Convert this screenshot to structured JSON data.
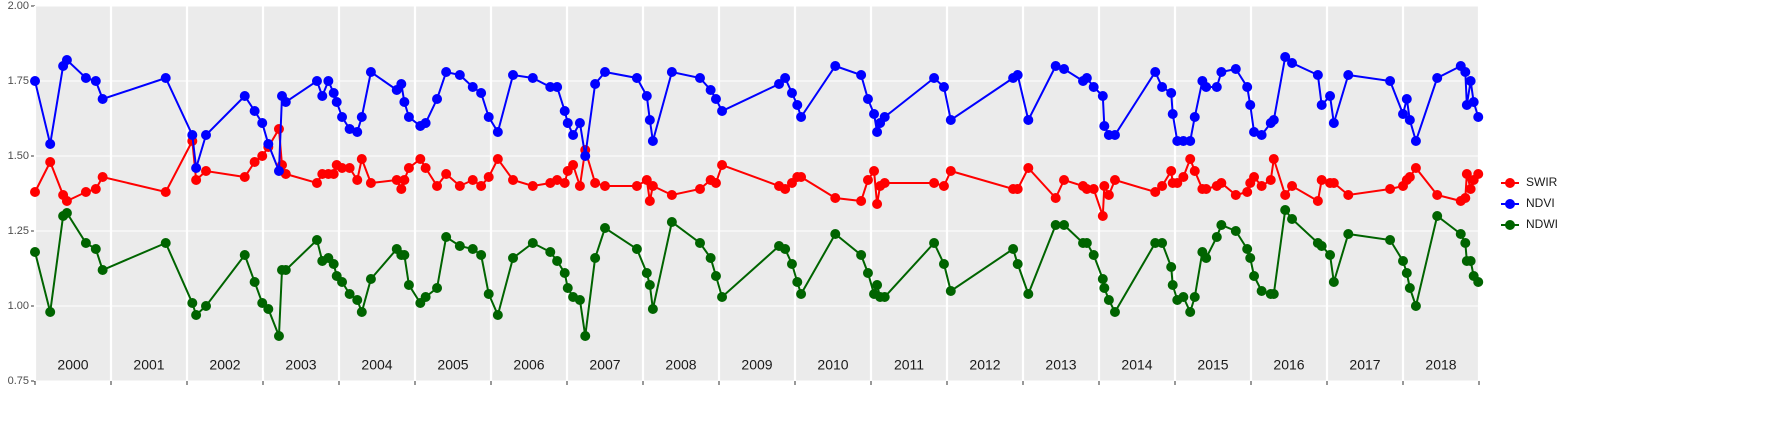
{
  "chart_data": {
    "type": "line",
    "x": [
      2000.0,
      2000.2,
      2000.37,
      2000.42,
      2000.67,
      2000.8,
      2000.89,
      2001.72,
      2002.07,
      2002.12,
      2002.25,
      2002.76,
      2002.89,
      2002.99,
      2003.07,
      2003.21,
      2003.25,
      2003.3,
      2003.71,
      2003.78,
      2003.86,
      2003.93,
      2003.97,
      2004.04,
      2004.14,
      2004.24,
      2004.3,
      2004.42,
      2004.76,
      2004.82,
      2004.86,
      2004.92,
      2005.07,
      2005.14,
      2005.29,
      2005.41,
      2005.59,
      2005.76,
      2005.87,
      2005.97,
      2006.09,
      2006.29,
      2006.55,
      2006.78,
      2006.87,
      2006.97,
      2007.01,
      2007.08,
      2007.17,
      2007.24,
      2007.37,
      2007.5,
      2007.92,
      2008.05,
      2008.09,
      2008.13,
      2008.38,
      2008.75,
      2008.89,
      2008.96,
      2009.04,
      2009.79,
      2009.87,
      2009.96,
      2010.03,
      2010.08,
      2010.53,
      2010.87,
      2010.96,
      2011.04,
      2011.08,
      2011.12,
      2011.18,
      2011.83,
      2011.96,
      2012.05,
      2012.87,
      2012.93,
      2013.07,
      2013.43,
      2013.54,
      2013.79,
      2013.84,
      2013.93,
      2014.05,
      2014.07,
      2014.13,
      2014.21,
      2014.74,
      2014.83,
      2014.95,
      2014.97,
      2015.03,
      2015.11,
      2015.2,
      2015.26,
      2015.36,
      2015.41,
      2015.55,
      2015.61,
      2015.8,
      2015.95,
      2015.99,
      2016.04,
      2016.14,
      2016.26,
      2016.3,
      2016.45,
      2016.54,
      2016.88,
      2016.93,
      2017.04,
      2017.09,
      2017.28,
      2017.83,
      2018.0,
      2018.05,
      2018.09,
      2018.17,
      2018.45,
      2018.76,
      2018.82,
      2018.84,
      2018.89,
      2018.93,
      2018.99
    ],
    "series": [
      {
        "name": "SWIR",
        "color": "#ff0000",
        "values": [
          1.38,
          1.48,
          1.37,
          1.35,
          1.38,
          1.39,
          1.43,
          1.38,
          1.55,
          1.42,
          1.45,
          1.43,
          1.48,
          1.5,
          1.53,
          1.59,
          1.47,
          1.44,
          1.41,
          1.44,
          1.44,
          1.44,
          1.47,
          1.46,
          1.46,
          1.42,
          1.49,
          1.41,
          1.42,
          1.39,
          1.42,
          1.46,
          1.49,
          1.46,
          1.4,
          1.44,
          1.4,
          1.42,
          1.4,
          1.43,
          1.49,
          1.42,
          1.4,
          1.41,
          1.42,
          1.41,
          1.45,
          1.47,
          1.4,
          1.52,
          1.41,
          1.4,
          1.4,
          1.42,
          1.35,
          1.4,
          1.37,
          1.39,
          1.42,
          1.41,
          1.47,
          1.4,
          1.39,
          1.41,
          1.43,
          1.43,
          1.36,
          1.35,
          1.42,
          1.45,
          1.34,
          1.4,
          1.41,
          1.41,
          1.4,
          1.45,
          1.39,
          1.39,
          1.46,
          1.36,
          1.42,
          1.4,
          1.39,
          1.39,
          1.3,
          1.4,
          1.37,
          1.42,
          1.38,
          1.4,
          1.45,
          1.41,
          1.41,
          1.43,
          1.49,
          1.45,
          1.39,
          1.39,
          1.4,
          1.41,
          1.37,
          1.38,
          1.41,
          1.43,
          1.4,
          1.42,
          1.49,
          1.37,
          1.4,
          1.35,
          1.42,
          1.41,
          1.41,
          1.37,
          1.39,
          1.4,
          1.42,
          1.43,
          1.46,
          1.37,
          1.35,
          1.36,
          1.44,
          1.39,
          1.42,
          1.44
        ]
      },
      {
        "name": "NDVI",
        "color": "#0000ff",
        "values": [
          1.75,
          1.54,
          1.8,
          1.82,
          1.76,
          1.75,
          1.69,
          1.76,
          1.57,
          1.46,
          1.57,
          1.7,
          1.65,
          1.61,
          1.54,
          1.45,
          1.7,
          1.68,
          1.75,
          1.7,
          1.75,
          1.71,
          1.68,
          1.63,
          1.59,
          1.58,
          1.63,
          1.78,
          1.72,
          1.74,
          1.68,
          1.63,
          1.6,
          1.61,
          1.69,
          1.78,
          1.77,
          1.73,
          1.71,
          1.63,
          1.58,
          1.77,
          1.76,
          1.73,
          1.73,
          1.65,
          1.61,
          1.57,
          1.61,
          1.5,
          1.74,
          1.78,
          1.76,
          1.7,
          1.62,
          1.55,
          1.78,
          1.76,
          1.72,
          1.69,
          1.65,
          1.74,
          1.76,
          1.71,
          1.67,
          1.63,
          1.8,
          1.77,
          1.69,
          1.64,
          1.58,
          1.61,
          1.63,
          1.76,
          1.73,
          1.62,
          1.76,
          1.77,
          1.62,
          1.8,
          1.79,
          1.75,
          1.76,
          1.73,
          1.7,
          1.6,
          1.57,
          1.57,
          1.78,
          1.73,
          1.71,
          1.64,
          1.55,
          1.55,
          1.55,
          1.63,
          1.75,
          1.73,
          1.73,
          1.78,
          1.79,
          1.73,
          1.67,
          1.58,
          1.57,
          1.61,
          1.62,
          1.83,
          1.81,
          1.77,
          1.67,
          1.7,
          1.61,
          1.77,
          1.75,
          1.64,
          1.69,
          1.62,
          1.55,
          1.76,
          1.8,
          1.78,
          1.67,
          1.75,
          1.68,
          1.63
        ]
      },
      {
        "name": "NDWI",
        "color": "#006400",
        "values": [
          1.18,
          0.98,
          1.3,
          1.31,
          1.21,
          1.19,
          1.12,
          1.21,
          1.01,
          0.97,
          1.0,
          1.17,
          1.08,
          1.01,
          0.99,
          0.9,
          1.12,
          1.12,
          1.22,
          1.15,
          1.16,
          1.14,
          1.1,
          1.08,
          1.04,
          1.02,
          0.98,
          1.09,
          1.19,
          1.17,
          1.17,
          1.07,
          1.01,
          1.03,
          1.06,
          1.23,
          1.2,
          1.19,
          1.17,
          1.04,
          0.97,
          1.16,
          1.21,
          1.18,
          1.15,
          1.11,
          1.06,
          1.03,
          1.02,
          0.9,
          1.16,
          1.26,
          1.19,
          1.11,
          1.07,
          0.99,
          1.28,
          1.21,
          1.16,
          1.1,
          1.03,
          1.2,
          1.19,
          1.14,
          1.08,
          1.04,
          1.24,
          1.17,
          1.11,
          1.04,
          1.07,
          1.03,
          1.03,
          1.21,
          1.14,
          1.05,
          1.19,
          1.14,
          1.04,
          1.27,
          1.27,
          1.21,
          1.21,
          1.17,
          1.09,
          1.06,
          1.02,
          0.98,
          1.21,
          1.21,
          1.13,
          1.07,
          1.02,
          1.03,
          0.98,
          1.03,
          1.18,
          1.16,
          1.23,
          1.27,
          1.25,
          1.19,
          1.16,
          1.1,
          1.05,
          1.04,
          1.04,
          1.32,
          1.29,
          1.21,
          1.2,
          1.17,
          1.08,
          1.24,
          1.22,
          1.15,
          1.11,
          1.06,
          1.0,
          1.3,
          1.24,
          1.21,
          1.15,
          1.15,
          1.1,
          1.08
        ]
      }
    ],
    "xlim": [
      2000,
      2019
    ],
    "xticks": [
      2000,
      2001,
      2002,
      2003,
      2004,
      2005,
      2006,
      2007,
      2008,
      2009,
      2010,
      2011,
      2012,
      2013,
      2014,
      2015,
      2016,
      2017,
      2018,
      2019
    ],
    "year_labels": [
      "2000",
      "2001",
      "2002",
      "2003",
      "2004",
      "2005",
      "2006",
      "2007",
      "2008",
      "2009",
      "2010",
      "2011",
      "2012",
      "2013",
      "2014",
      "2015",
      "2016",
      "2017",
      "2018"
    ],
    "ylim": [
      0.75,
      2.0
    ],
    "yticks": [
      0.75,
      {
        "value": 1,
        "label": "1.00"
      },
      1.25,
      {
        "value": 1.5,
        "label": "1.50"
      },
      1.75,
      {
        "value": 2,
        "label": "2.00"
      }
    ],
    "grid": true,
    "legend": "right"
  }
}
